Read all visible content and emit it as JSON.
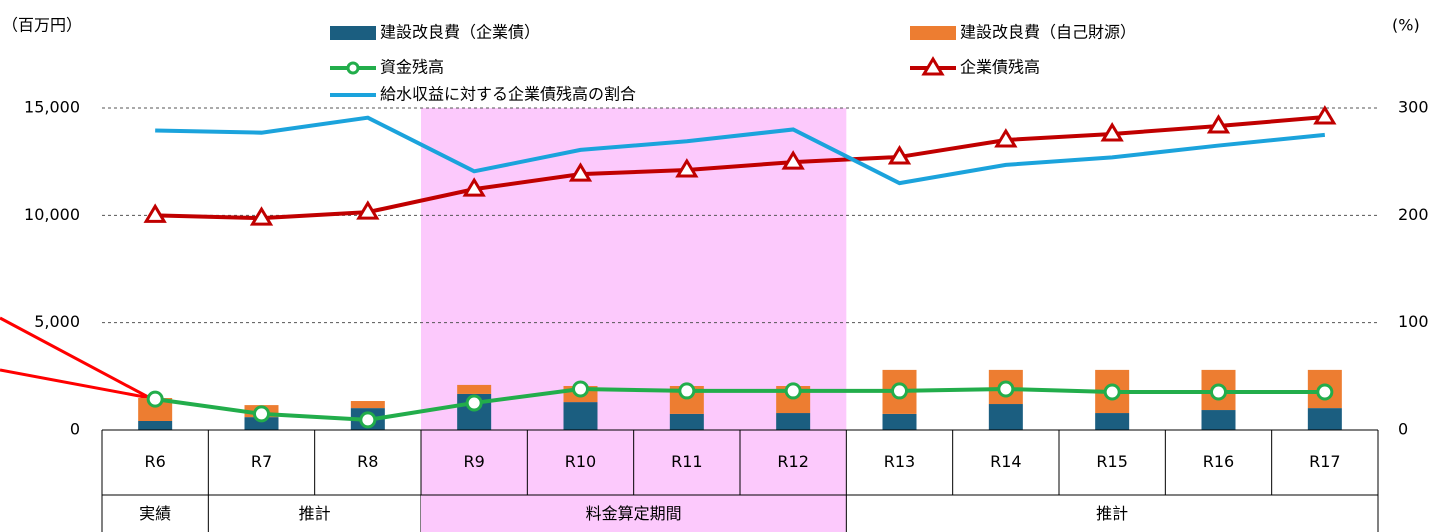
{
  "chart_data": {
    "type": "combo",
    "y_label": "（百万円）",
    "y2_label": "(%)",
    "categories": [
      "R6",
      "R7",
      "R8",
      "R9",
      "R10",
      "R11",
      "R12",
      "R13",
      "R14",
      "R15",
      "R16",
      "R17"
    ],
    "periods": [
      {
        "label": "実績",
        "span": 1
      },
      {
        "label": "推計",
        "span": 2
      },
      {
        "label": "料金算定期間",
        "span": 4,
        "highlight": true
      },
      {
        "label": "推計",
        "span": 5
      }
    ],
    "highlight_color": "#fcc9fc",
    "ylim": [
      0,
      15000
    ],
    "yticks": [
      {
        "value": 0,
        "label": "0"
      },
      {
        "value": 5000,
        "label": "5,000"
      },
      {
        "value": 10000,
        "label": "10,000"
      },
      {
        "value": 15000,
        "label": "15,000"
      }
    ],
    "y2lim": [
      0,
      300
    ],
    "y2ticks": [
      0,
      100,
      200,
      300
    ],
    "grid": true,
    "series": [
      {
        "name": "建設改良費（企業債）",
        "type": "bar",
        "color": "#1b5e80",
        "values": [
          420,
          600,
          1020,
          1680,
          1300,
          750,
          790,
          750,
          1210,
          790,
          930,
          1020
        ]
      },
      {
        "name": "建設改良費（自己財源）",
        "type": "bar",
        "color": "#ed7d31",
        "values": [
          1070,
          560,
          330,
          420,
          750,
          1300,
          1260,
          2050,
          1590,
          2010,
          1870,
          1780
        ]
      },
      {
        "name": "資金残高",
        "type": "line",
        "marker": "circle",
        "color": "#22ad4b",
        "values": [
          1440,
          750,
          470,
          1260,
          1910,
          1820,
          1820,
          1820,
          1910,
          1770,
          1770,
          1770
        ]
      },
      {
        "name": "企業債残高",
        "type": "line",
        "marker": "triangle",
        "color": "#c00000",
        "values": [
          10000,
          9870,
          10150,
          11220,
          11920,
          12110,
          12480,
          12720,
          13510,
          13790,
          14160,
          14580
        ]
      },
      {
        "name": "給水収益に対する企業債残高の割合",
        "type": "line",
        "axis": "y2",
        "color": "#1ba3dc",
        "values": [
          279,
          277,
          291,
          241,
          261,
          269,
          280,
          230,
          247,
          254,
          265,
          275
        ]
      }
    ]
  }
}
